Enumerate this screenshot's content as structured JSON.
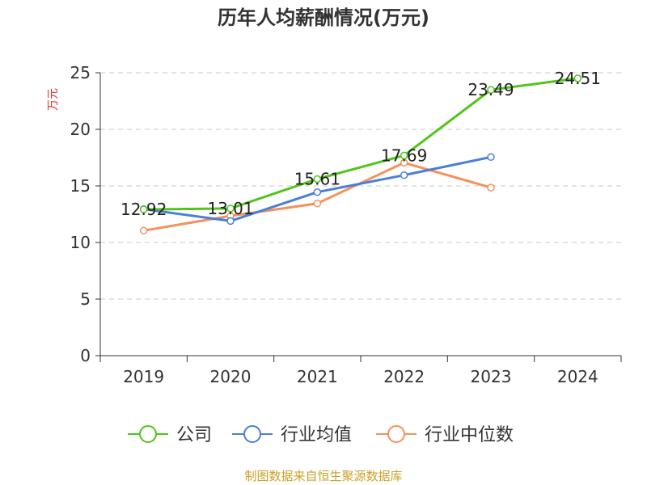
{
  "chart_data": {
    "type": "line",
    "title": "历年人均薪酬情况(万元)",
    "ylabel": "万元",
    "xlabel": "",
    "categories": [
      "2019",
      "2020",
      "2021",
      "2022",
      "2023",
      "2024"
    ],
    "ylim": [
      0,
      25
    ],
    "yticks": [
      0,
      5,
      10,
      15,
      20,
      25
    ],
    "grid": true,
    "legend_position": "bottom",
    "series": [
      {
        "name": "公司",
        "color": "#52c41a",
        "values": [
          12.92,
          13.01,
          15.61,
          17.69,
          23.49,
          24.51
        ],
        "data_labels": [
          "12.92",
          "13.01",
          "15.61",
          "17.69",
          "23.49",
          "24.51"
        ]
      },
      {
        "name": "行业均值",
        "color": "#4a7fd8",
        "values": [
          12.95,
          11.9,
          14.45,
          15.95,
          17.55,
          null
        ]
      },
      {
        "name": "行业中位数",
        "color": "#f4915a",
        "values": [
          11.05,
          12.35,
          13.45,
          17.05,
          14.85,
          null
        ]
      }
    ],
    "source": "制图数据来自恒生聚源数据库"
  }
}
